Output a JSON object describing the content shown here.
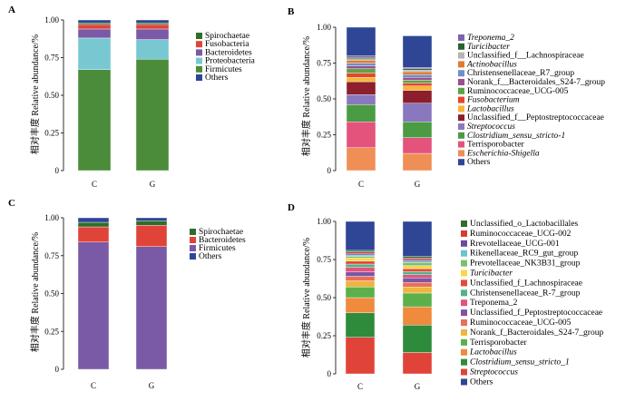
{
  "chart_data": [
    {
      "panel": "A",
      "type": "bar",
      "stacked": true,
      "ylabel_en": "Relative abundance/%",
      "ylabel_cn": "相对丰度",
      "ylim": [
        0,
        1
      ],
      "yticks": [
        "0",
        "0.25",
        "0.50",
        "0.75",
        "1.00"
      ],
      "categories": [
        "C",
        "G"
      ],
      "series": [
        {
          "name": "Firmicutes",
          "color": "#4a8c3a",
          "values": [
            0.67,
            0.74
          ]
        },
        {
          "name": "Proteobacteria",
          "color": "#78c8d2",
          "values": [
            0.21,
            0.13
          ]
        },
        {
          "name": "Bacteroidetes",
          "color": "#7a5aa6",
          "values": [
            0.06,
            0.07
          ]
        },
        {
          "name": "Fusobacteria",
          "color": "#e04438",
          "values": [
            0.03,
            0.03
          ]
        },
        {
          "name": "Spirochaetae",
          "color": "#2f6e2a",
          "values": [
            0.01,
            0.01
          ]
        },
        {
          "name": "Others",
          "color": "#2f4596",
          "values": [
            0.02,
            0.02
          ]
        }
      ],
      "legend": [
        {
          "label": "Spirochaetae",
          "color": "#2f6e2a"
        },
        {
          "label": "Fusobacteria",
          "color": "#e04438"
        },
        {
          "label": "Bacteroidetes",
          "color": "#7a5aa6"
        },
        {
          "label": "Proteobacteria",
          "color": "#78c8d2"
        },
        {
          "label": "Firmicutes",
          "color": "#4a8c3a"
        },
        {
          "label": "Others",
          "color": "#2f4596"
        }
      ]
    },
    {
      "panel": "B",
      "type": "bar",
      "stacked": true,
      "ylabel_en": "Relative abundance/%",
      "ylabel_cn": "相对丰度",
      "ylim": [
        0,
        1
      ],
      "yticks": [
        "0",
        "0.25",
        "0.50",
        "0.75",
        "1.00"
      ],
      "categories": [
        "C",
        "G"
      ],
      "series": [
        {
          "name": "Escherichia-Shigella",
          "color": "#ef8f55",
          "values": [
            0.16,
            0.12
          ]
        },
        {
          "name": "Terrisporobacter",
          "color": "#e3537b",
          "values": [
            0.18,
            0.11
          ]
        },
        {
          "name": "Clostridium_sensu_stricto-1",
          "color": "#4b9b45",
          "values": [
            0.12,
            0.11
          ]
        },
        {
          "name": "Streptococcus",
          "color": "#8a78bf",
          "values": [
            0.07,
            0.13
          ]
        },
        {
          "name": "Unclassified_f__Peptostreptococcaceae",
          "color": "#8c1f2b",
          "values": [
            0.09,
            0.09
          ]
        },
        {
          "name": "Lactobacillus",
          "color": "#f4b63a",
          "values": [
            0.03,
            0.03
          ]
        },
        {
          "name": "Fusobacterium",
          "color": "#e8452f",
          "values": [
            0.03,
            0.02
          ]
        },
        {
          "name": "Ruminococcaceae_UCG-005",
          "color": "#5da342",
          "values": [
            0.03,
            0.02
          ]
        },
        {
          "name": "Norank_f__Bacteroidales_S24-7_group",
          "color": "#9a4f8f",
          "values": [
            0.02,
            0.02
          ]
        },
        {
          "name": "Christensenellaceae_R7_group",
          "color": "#6f8fc9",
          "values": [
            0.02,
            0.02
          ]
        },
        {
          "name": "Actinobacillus",
          "color": "#e47a2e",
          "values": [
            0.02,
            0.02
          ]
        },
        {
          "name": "Unclassified_f__Lachnospiraceae",
          "color": "#b5b5b5",
          "values": [
            0.01,
            0.01
          ]
        },
        {
          "name": "Turicibacter",
          "color": "#27632c",
          "values": [
            0.01,
            0.01
          ]
        },
        {
          "name": "Treponema_2",
          "color": "#7e62b0",
          "values": [
            0.01,
            0.01
          ]
        },
        {
          "name": "Others",
          "color": "#2f4596",
          "values": [
            0.2,
            0.22
          ]
        }
      ],
      "legend": [
        {
          "label": "Treponema_2",
          "color": "#7e62b0",
          "italic": true
        },
        {
          "label": "Turicibacter",
          "color": "#27632c",
          "italic": true
        },
        {
          "label": "Unclassified_f__Lachnospiraceae",
          "color": "#b5b5b5",
          "italic": false
        },
        {
          "label": "Actinobacillus",
          "color": "#e47a2e",
          "italic": true
        },
        {
          "label": "Christensenellaceae_R7_group",
          "color": "#6f8fc9",
          "italic": false
        },
        {
          "label": "Norank_f__Bacteroidales_S24-7_group",
          "color": "#9a4f8f",
          "italic": false
        },
        {
          "label": "Ruminococcaceae_UCG-005",
          "color": "#5da342",
          "italic": false
        },
        {
          "label": "Fusobacterium",
          "color": "#e8452f",
          "italic": true
        },
        {
          "label": "Lactobacillus",
          "color": "#f4b63a",
          "italic": true
        },
        {
          "label": "Unclassified_f__Peptostreptococcaceae",
          "color": "#8c1f2b",
          "italic": false
        },
        {
          "label": "Streptococcus",
          "color": "#8a78bf",
          "italic": true
        },
        {
          "label": "Clostridium_sensu_stricto-1",
          "color": "#4b9b45",
          "italic": true
        },
        {
          "label": "Terrisporobacter",
          "color": "#e3537b",
          "italic": false
        },
        {
          "label": "Escherichia-Shigella",
          "color": "#ef8f55",
          "italic": true
        },
        {
          "label": "Others",
          "color": "#2f4596",
          "italic": false
        }
      ]
    },
    {
      "panel": "C",
      "type": "bar",
      "stacked": true,
      "ylabel_en": "Relative abundance/%",
      "ylabel_cn": "相对丰度",
      "ylim": [
        0,
        1
      ],
      "yticks": [
        "0",
        "0.25",
        "0.50",
        "0.75",
        "1.00"
      ],
      "categories": [
        "C",
        "G"
      ],
      "series": [
        {
          "name": "Firmicutes",
          "color": "#7a5aa6",
          "values": [
            0.84,
            0.81
          ]
        },
        {
          "name": "Bacteroidetes",
          "color": "#e04438",
          "values": [
            0.1,
            0.14
          ]
        },
        {
          "name": "Spirochaetae",
          "color": "#2f6e2a",
          "values": [
            0.03,
            0.03
          ]
        },
        {
          "name": "Others",
          "color": "#2f4596",
          "values": [
            0.03,
            0.02
          ]
        }
      ],
      "legend": [
        {
          "label": "Spirochaetae",
          "color": "#2f6e2a"
        },
        {
          "label": "Bacteroidetes",
          "color": "#e04438"
        },
        {
          "label": "Firmicutes",
          "color": "#7a5aa6"
        },
        {
          "label": "Others",
          "color": "#2f4596"
        }
      ]
    },
    {
      "panel": "D",
      "type": "bar",
      "stacked": true,
      "ylabel_en": "Relative abundance/%",
      "ylabel_cn": "相对丰度",
      "ylim": [
        0,
        1
      ],
      "yticks": [
        "0",
        "0.25",
        "0.50",
        "0.75",
        "1.00"
      ],
      "categories": [
        "C",
        "G"
      ],
      "series": [
        {
          "name": "Streptococcus",
          "color": "#e04438",
          "values": [
            0.24,
            0.14
          ]
        },
        {
          "name": "Clostridium_sensu_stricto_1",
          "color": "#2e8b3c",
          "values": [
            0.16,
            0.18
          ]
        },
        {
          "name": "Lactobacillus",
          "color": "#f08a3c",
          "values": [
            0.1,
            0.12
          ]
        },
        {
          "name": "Terrisporobacter",
          "color": "#5bb04a",
          "values": [
            0.07,
            0.09
          ]
        },
        {
          "name": "Norank_f_Bacteroidales_S24-7_group",
          "color": "#f1b53d",
          "values": [
            0.04,
            0.04
          ]
        },
        {
          "name": "Ruminococcaceae_UCG-005",
          "color": "#e8705a",
          "values": [
            0.03,
            0.03
          ]
        },
        {
          "name": "Unclassified_f_Peptostreptococcaceae",
          "color": "#7e55a3",
          "values": [
            0.03,
            0.03
          ]
        },
        {
          "name": "Treponema_2",
          "color": "#e3537b",
          "values": [
            0.03,
            0.02
          ]
        },
        {
          "name": "Christensenellaceae_R-7_group",
          "color": "#4fb38c",
          "values": [
            0.02,
            0.02
          ]
        },
        {
          "name": "Unclassified_f_Lachnospiraceae",
          "color": "#e24a3a",
          "values": [
            0.02,
            0.02
          ]
        },
        {
          "name": "Turicibacter",
          "color": "#f5d84a",
          "values": [
            0.02,
            0.02
          ]
        },
        {
          "name": "Prevotellaceae_NK3B31_group",
          "color": "#7fbf6a",
          "values": [
            0.01,
            0.02
          ]
        },
        {
          "name": "Rikenellaceae_RC9_gut_group",
          "color": "#6bc3cf",
          "values": [
            0.01,
            0.01
          ]
        },
        {
          "name": "Rrevotellaceae_UCG-001",
          "color": "#6a4c9c",
          "values": [
            0.01,
            0.01
          ]
        },
        {
          "name": "Ruminococcaceae_UCG-002",
          "color": "#d93a2f",
          "values": [
            0.01,
            0.01
          ]
        },
        {
          "name": "Unclassified_o_Lactobacillales",
          "color": "#2f6e2a",
          "values": [
            0.01,
            0.01
          ]
        },
        {
          "name": "Others",
          "color": "#2f4596",
          "values": [
            0.19,
            0.23
          ]
        }
      ],
      "legend": [
        {
          "label": "Unclassified_o_Lactobacillales",
          "color": "#2f6e2a",
          "italic": false
        },
        {
          "label": "Ruminococcaceae_UCG-002",
          "color": "#d93a2f",
          "italic": false
        },
        {
          "label": "Rrevotellaceae_UCG-001",
          "color": "#6a4c9c",
          "italic": false
        },
        {
          "label": "Rikenellaceae_RC9_gut_group",
          "color": "#6bc3cf",
          "italic": false
        },
        {
          "label": "Prevotellaceae_NK3B31_group",
          "color": "#7fbf6a",
          "italic": false
        },
        {
          "label": "Turicibacter",
          "color": "#f5d84a",
          "italic": true
        },
        {
          "label": "Unclassified_f_Lachnospiraceae",
          "color": "#e24a3a",
          "italic": false
        },
        {
          "label": "Christensenellaceae_R-7_group",
          "color": "#4fb38c",
          "italic": false
        },
        {
          "label": "Treponema_2",
          "color": "#e3537b",
          "italic": false
        },
        {
          "label": "Unclassified_f_Peptostreptococcaceae",
          "color": "#7e55a3",
          "italic": false
        },
        {
          "label": "Ruminococcaceae_UCG-005",
          "color": "#e8705a",
          "italic": false
        },
        {
          "label": "Norank_f_Bacteroidales_S24-7_group",
          "color": "#f1b53d",
          "italic": false
        },
        {
          "label": "Terrisporobacter",
          "color": "#5bb04a",
          "italic": false
        },
        {
          "label": "Lactobacillus",
          "color": "#f08a3c",
          "italic": true
        },
        {
          "label": "Clostridium_sensu_stricto_1",
          "color": "#2e8b3c",
          "italic": true
        },
        {
          "label": "Streptococcus",
          "color": "#e04438",
          "italic": true
        },
        {
          "label": "Others",
          "color": "#2f4596",
          "italic": false
        }
      ]
    }
  ]
}
